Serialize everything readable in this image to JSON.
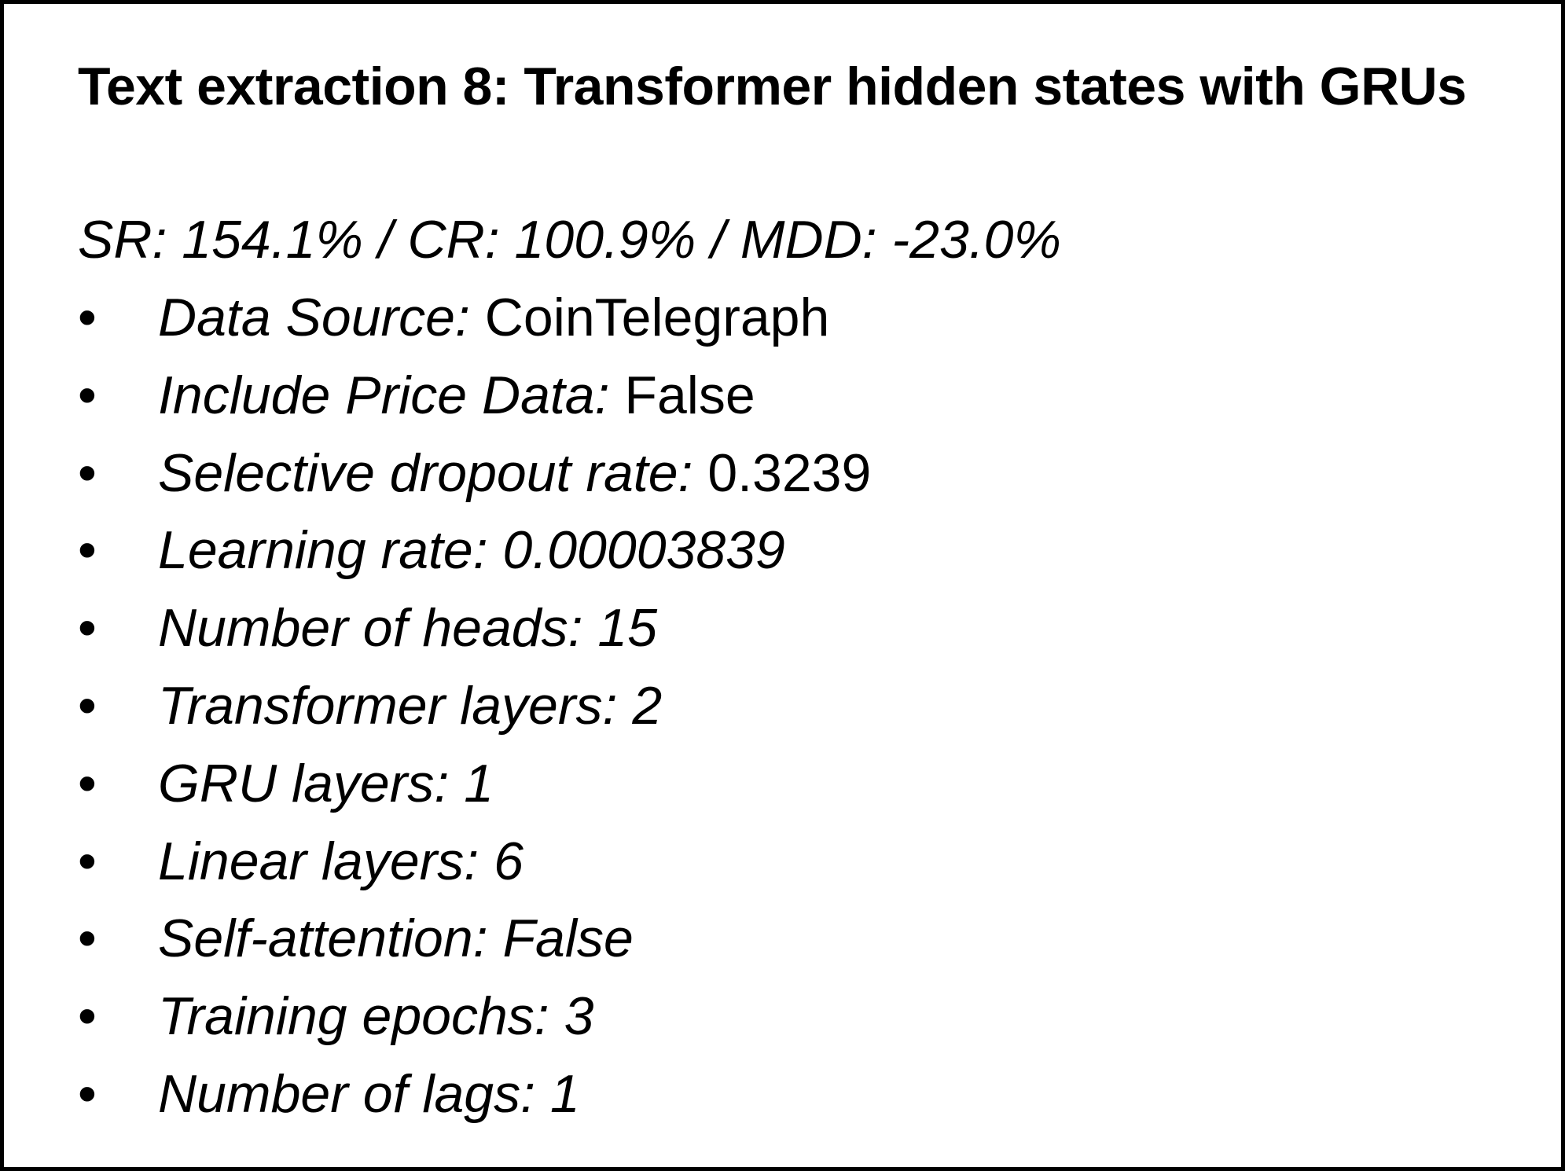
{
  "title": "Text extraction 8: Transformer hidden states with GRUs",
  "metrics": "SR: 154.1% / CR: 100.9% / MDD: -23.0%",
  "bullet_glyph": "•",
  "params": [
    {
      "label": "Data Source:",
      "value": "CoinTelegraph",
      "value_italic": false
    },
    {
      "label": "Include Price Data:",
      "value": "False",
      "value_italic": false
    },
    {
      "label": "Selective dropout rate:",
      "value": "0.3239",
      "value_italic": false
    },
    {
      "label": "Learning rate:",
      "value": "0.00003839",
      "value_italic": true
    },
    {
      "label": "Number of heads:",
      "value": "15",
      "value_italic": true
    },
    {
      "label": "Transformer layers:",
      "value": "2",
      "value_italic": true
    },
    {
      "label": "GRU layers:",
      "value": "1",
      "value_italic": true
    },
    {
      "label": "Linear layers:",
      "value": "6",
      "value_italic": true
    },
    {
      "label": "Self-attention:",
      "value": "False",
      "value_italic": true
    },
    {
      "label": "Training epochs:",
      "value": "3",
      "value_italic": true
    },
    {
      "label": "Number of lags:",
      "value": "1",
      "value_italic": true
    }
  ]
}
